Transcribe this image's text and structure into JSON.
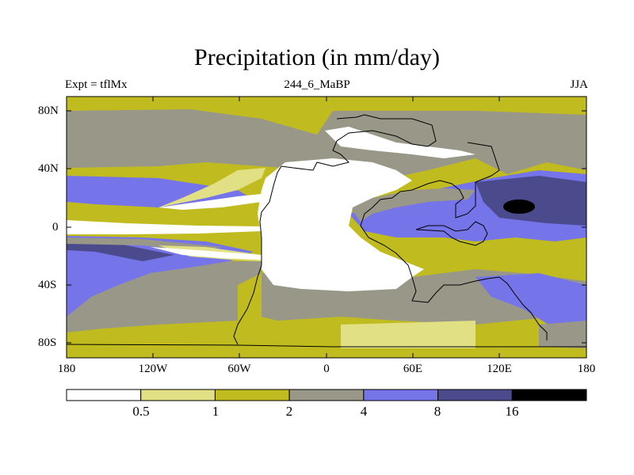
{
  "title": "Precipitation (in mm/day)",
  "subtitle_left": "Expt = tflMx",
  "subtitle_center": "244_6_MaBP",
  "subtitle_right": "JJA",
  "y_ticks": [
    "80N",
    "40N",
    "0",
    "40S",
    "80S"
  ],
  "x_ticks": [
    "180",
    "120W",
    "60W",
    "0",
    "60E",
    "120E",
    "180"
  ],
  "colorbar": {
    "colors": [
      "#ffffff",
      "#e2e084",
      "#c0bb1f",
      "#999888",
      "#7674e9",
      "#4a4a8c",
      "#000000"
    ],
    "labels": [
      "0.5",
      "1",
      "2",
      "4",
      "8",
      "16"
    ]
  },
  "map_colors": {
    "white": "#ffffff",
    "lightyellow": "#e2e084",
    "olive": "#c0bb1f",
    "gray": "#999888",
    "blue": "#7674e9",
    "navy": "#4a4a8c",
    "black": "#000000",
    "coast": "#000000"
  }
}
